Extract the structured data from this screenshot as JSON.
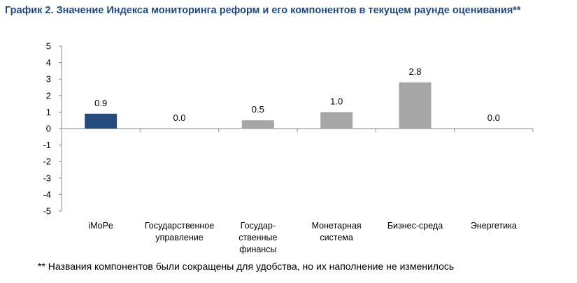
{
  "title": "График 2. Значение Индекса мониторинга реформ и его компонентов в текущем раунде оценивания**",
  "footnote": "** Названия компонентов были сокращены для удобства, но их наполнение не изменилось",
  "chart_data": {
    "type": "bar",
    "categories": [
      [
        "iMoPe"
      ],
      [
        "Государственное",
        "управление"
      ],
      [
        "Государ-",
        "ственные",
        "финансы"
      ],
      [
        "Монетарная",
        "система"
      ],
      [
        "Бизнес-среда"
      ],
      [
        "Энергетика"
      ]
    ],
    "values": [
      0.9,
      0.0,
      0.5,
      1.0,
      2.8,
      0.0
    ],
    "data_labels": [
      "0.9",
      "0.0",
      "0.5",
      "1.0",
      "2.8",
      "0.0"
    ],
    "bar_colors": [
      "#264a7e",
      "#a6a6a6",
      "#a6a6a6",
      "#a6a6a6",
      "#a6a6a6",
      "#a6a6a6"
    ],
    "ylim": [
      -5,
      5
    ],
    "yticks": [
      5,
      4,
      3,
      2,
      1,
      0,
      -1,
      -2,
      -3,
      -4,
      -5
    ],
    "ytick_labels": [
      "5",
      "4",
      "3",
      "2",
      "1",
      "0",
      "-1",
      "-2",
      "-3",
      "-4",
      "-5"
    ],
    "grid": false,
    "legend": "none",
    "axis_color": "#868686"
  }
}
